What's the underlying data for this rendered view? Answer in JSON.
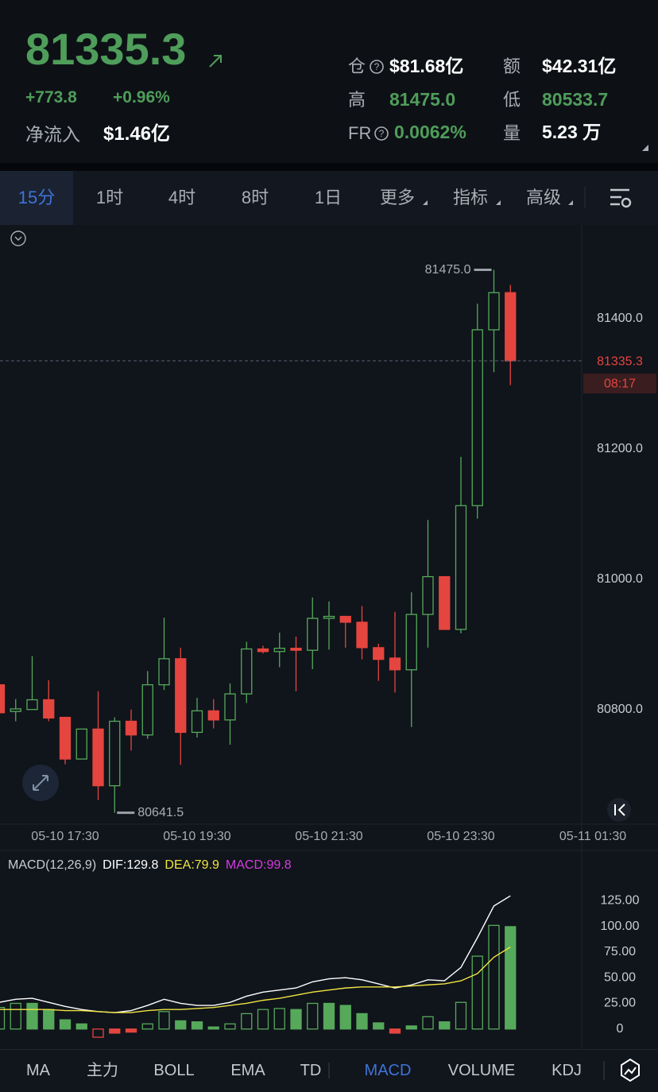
{
  "header": {
    "price": "81335.3",
    "change": "+773.8",
    "change_pct": "+0.96%",
    "netflow_label": "净流入",
    "netflow": "$1.46亿",
    "stats": [
      {
        "label": "仓",
        "value": "$81.68亿"
      },
      {
        "label": "额",
        "value": "$42.31亿"
      },
      {
        "label": "高",
        "value": "81475.0"
      },
      {
        "label": "低",
        "value": "80533.7"
      },
      {
        "label": "FR",
        "value": "0.0062%"
      },
      {
        "label": "量",
        "value": "5.23 万"
      }
    ]
  },
  "tabs": [
    "15分",
    "1时",
    "4时",
    "8时",
    "1日",
    "更多",
    "指标",
    "高级"
  ],
  "chart_data": [
    {
      "type": "candlestick",
      "x": [
        "05-10 16:30",
        "05-10 16:45",
        "05-10 17:00",
        "05-10 17:15",
        "05-10 17:30",
        "05-10 17:45",
        "05-10 18:00",
        "05-10 18:15",
        "05-10 18:30",
        "05-10 18:45",
        "05-10 19:00",
        "05-10 19:15",
        "05-10 19:30",
        "05-10 19:45",
        "05-10 20:00",
        "05-10 20:15",
        "05-10 20:30",
        "05-10 20:45",
        "05-10 21:00",
        "05-10 21:15",
        "05-10 21:30",
        "05-10 21:45",
        "05-10 22:00",
        "05-10 22:15",
        "05-10 22:30",
        "05-10 22:45",
        "05-10 23:00",
        "05-10 23:15",
        "05-10 23:30",
        "05-10 23:45",
        "05-11 00:00",
        "05-11 00:15"
      ],
      "open": [
        80838,
        80797,
        80800,
        80815,
        80788,
        80724,
        80770,
        80683,
        80782,
        80761,
        80838,
        80878,
        80765,
        80798,
        80784,
        80824,
        80893,
        80889,
        80894,
        80891,
        80940,
        80943,
        80934,
        80895,
        80879,
        80861,
        80946,
        81004,
        80923,
        81113,
        81383,
        81440
      ],
      "high": [
        80838,
        80816,
        80882,
        80845,
        80788,
        80770,
        80828,
        80788,
        80800,
        80859,
        80941,
        80895,
        80818,
        80816,
        80840,
        80904,
        80898,
        80918,
        80912,
        80972,
        80966,
        80943,
        80959,
        80901,
        80950,
        80980,
        81091,
        81004,
        81188,
        81423,
        81475,
        81452
      ],
      "low": [
        80795,
        80782,
        80800,
        80782,
        80716,
        80724,
        80661,
        80641.5,
        80737,
        80755,
        80830,
        80715,
        80757,
        80771,
        80746,
        80810,
        80886,
        80865,
        80828,
        80862,
        80892,
        80895,
        80877,
        80844,
        80826,
        80773,
        80895,
        80923,
        80917,
        81093,
        81318,
        81298
      ],
      "close": [
        80795,
        80801,
        80815,
        80787,
        80724,
        80770,
        80683,
        80782,
        80761,
        80838,
        80878,
        80765,
        80798,
        80784,
        80824,
        80893,
        80889,
        80894,
        80891,
        80940,
        80943,
        80934,
        80895,
        80877,
        80861,
        80946,
        81004,
        80923,
        81113,
        81383,
        81440,
        81335.3
      ],
      "up_color": "#56a95b",
      "down_color": "#e5453f",
      "ylim": [
        80624,
        81544
      ],
      "yticks": [
        {
          "value": 80800,
          "label": "80800.0"
        },
        {
          "value": 81000,
          "label": "81000.0"
        },
        {
          "value": 81200,
          "label": "81200.0"
        },
        {
          "value": 81400,
          "label": "81400.0"
        }
      ],
      "xticks": [
        "05-10 17:30",
        "05-10 19:30",
        "05-10 21:30",
        "05-10 23:30",
        "05-11 01:30"
      ],
      "annotations": [
        {
          "value": 81475,
          "label": "81475.0"
        },
        {
          "value": 80641.5,
          "label": "80641.5"
        }
      ],
      "countdown": "08:17"
    },
    {
      "type": "macd",
      "title": "MACD(12,26,9)",
      "x": [
        "05-10 16:30",
        "05-10 16:45",
        "05-10 17:00",
        "05-10 17:15",
        "05-10 17:30",
        "05-10 17:45",
        "05-10 18:00",
        "05-10 18:15",
        "05-10 18:30",
        "05-10 18:45",
        "05-10 19:00",
        "05-10 19:15",
        "05-10 19:30",
        "05-10 19:45",
        "05-10 20:00",
        "05-10 20:15",
        "05-10 20:30",
        "05-10 20:45",
        "05-10 21:00",
        "05-10 21:15",
        "05-10 21:30",
        "05-10 21:45",
        "05-10 22:00",
        "05-10 22:15",
        "05-10 22:30",
        "05-10 22:45",
        "05-10 23:00",
        "05-10 23:15",
        "05-10 23:30",
        "05-10 23:45",
        "05-11 00:00",
        "05-11 00:15"
      ],
      "series": [
        {
          "name": "DIF:",
          "color": "#ffffff",
          "values": [
            26,
            29,
            30,
            26,
            22,
            19,
            17,
            16,
            18,
            23,
            29,
            25,
            23,
            23,
            26,
            32,
            36,
            38,
            40,
            46,
            49,
            50,
            48,
            44,
            40,
            43,
            48,
            47,
            60,
            89,
            120,
            129.8
          ]
        },
        {
          "name": "DEA:",
          "color": "#f0e442",
          "values": [
            19,
            19,
            19,
            19,
            18,
            18,
            17,
            16,
            16,
            18,
            19,
            19,
            20,
            21,
            23,
            25,
            28,
            30,
            33,
            36,
            38,
            40,
            41,
            41,
            41,
            42,
            43,
            44,
            47,
            54,
            70,
            79.9
          ]
        },
        {
          "name": "MACD:",
          "color": "#d63be0",
          "up_color": "#56a95b",
          "down_color": "#e5453f",
          "values": [
            21,
            25,
            25,
            19,
            9,
            5,
            -8,
            -4,
            -3,
            5,
            17,
            8,
            7,
            2,
            5,
            15,
            19,
            20,
            19,
            25,
            25,
            23,
            15,
            6,
            -4,
            3,
            12,
            7,
            26,
            71,
            101,
            99.8
          ]
        }
      ],
      "ylim": [
        -18,
        147
      ],
      "yticks": [
        0,
        {
          "value": 25,
          "label": "25.00"
        },
        {
          "value": 50,
          "label": "50.00"
        },
        {
          "value": 75,
          "label": "75.00"
        },
        {
          "value": 100,
          "label": "100.00"
        },
        {
          "value": 125,
          "label": "125.00"
        }
      ]
    }
  ],
  "indicator_tabs": [
    "MA",
    "主力",
    "BOLL",
    "EMA",
    "TD",
    "MACD",
    "VOLUME",
    "KDJ"
  ]
}
